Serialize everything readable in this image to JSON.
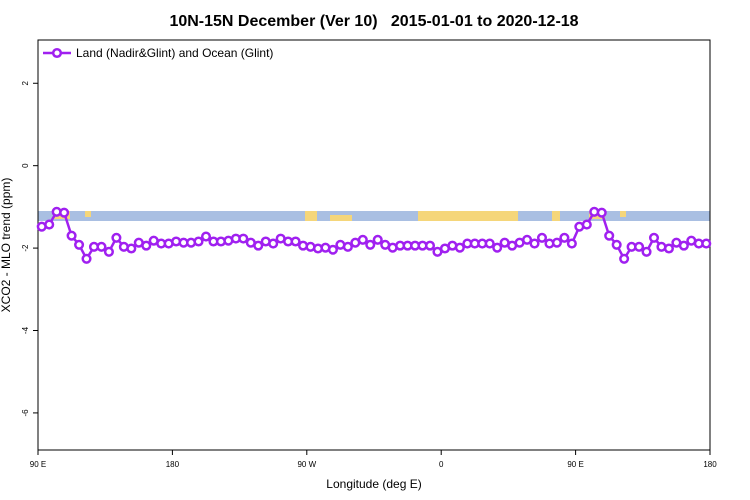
{
  "chart_data": {
    "type": "line",
    "title": "10N-15N December (Ver 10)   2015-01-01 to 2020-12-18",
    "x_label": "Longitude (deg E)",
    "y_label": "XCO2 - MLO trend (ppm)",
    "x": [
      92.5,
      97.5,
      102.5,
      107.5,
      112.5,
      117.5,
      122.5,
      127.5,
      132.5,
      137.5,
      142.5,
      147.5,
      152.5,
      157.5,
      162.5,
      167.5,
      172.5,
      177.5,
      182.5,
      187.5,
      192.5,
      197.5,
      202.5,
      207.5,
      212.5,
      217.5,
      222.5,
      227.5,
      232.5,
      237.5,
      242.5,
      247.5,
      252.5,
      257.5,
      262.5,
      267.5,
      272.5,
      277.5,
      282.5,
      287.5,
      292.5,
      297.5,
      302.5,
      307.5,
      312.5,
      317.5,
      322.5,
      327.5,
      332.5,
      337.5,
      342.5,
      347.5,
      352.5,
      357.5,
      362.5,
      367.5,
      372.5,
      377.5,
      382.5,
      387.5,
      392.5,
      397.5,
      402.5,
      407.5,
      412.5,
      417.5,
      422.5,
      427.5,
      432.5,
      437.5,
      442.5,
      447.5,
      452.5,
      457.5,
      462.5,
      467.5,
      472.5,
      477.5,
      482.5,
      487.5,
      492.5,
      497.5,
      502.5,
      507.5,
      512.5,
      517.5,
      522.5,
      527.5,
      532.5,
      537.5
    ],
    "series": [
      {
        "name": "Land (Nadir&Glint) and Ocean (Glint)",
        "color": "#a020f0",
        "values": [
          -1.48,
          -1.43,
          -1.12,
          -1.14,
          -1.7,
          -1.92,
          -2.26,
          -1.97,
          -1.97,
          -2.09,
          -1.75,
          -1.97,
          -2.01,
          -1.87,
          -1.94,
          -1.82,
          -1.89,
          -1.89,
          -1.84,
          -1.87,
          -1.87,
          -1.84,
          -1.72,
          -1.84,
          -1.84,
          -1.82,
          -1.77,
          -1.77,
          -1.87,
          -1.94,
          -1.84,
          -1.89,
          -1.77,
          -1.84,
          -1.84,
          -1.94,
          -1.97,
          -2.01,
          -1.99,
          -2.04,
          -1.92,
          -1.97,
          -1.87,
          -1.8,
          -1.92,
          -1.8,
          -1.92,
          -1.99,
          -1.94,
          -1.94,
          -1.94,
          -1.94,
          -1.94,
          -2.09,
          -2.01,
          -1.94,
          -1.99,
          -1.89,
          -1.89,
          -1.89,
          -1.89,
          -1.99,
          -1.87,
          -1.94,
          -1.87,
          -1.8,
          -1.89,
          -1.75,
          -1.89,
          -1.87,
          -1.75,
          -1.89,
          -1.48,
          -1.43,
          -1.12,
          -1.14,
          -1.7,
          -1.92,
          -2.26,
          -1.97,
          -1.97,
          -2.09,
          -1.75,
          -1.97,
          -2.01,
          -1.87,
          -1.94,
          -1.82,
          -1.89,
          -1.89
        ]
      }
    ],
    "xlim": [
      90,
      540
    ],
    "xticks": [
      {
        "value": 90,
        "label": "90 E"
      },
      180,
      {
        "value": 270,
        "label": "90 W"
      },
      {
        "value": 360,
        "label": "0"
      },
      {
        "value": 450,
        "label": "90 E"
      },
      {
        "value": 540,
        "label": "180"
      }
    ],
    "ylim": [
      -6.9,
      3.05
    ],
    "yticks": [
      2,
      0,
      -2,
      -4,
      -6
    ],
    "legend": "top-left"
  }
}
